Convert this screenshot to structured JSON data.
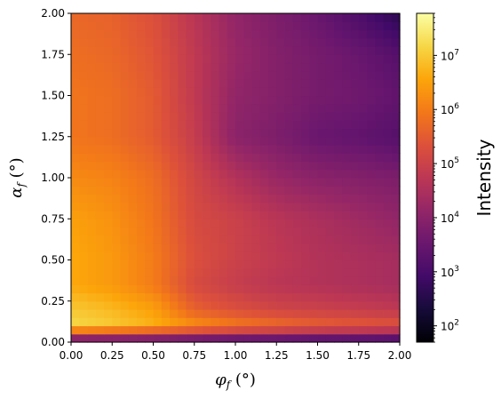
{
  "chart_data": {
    "type": "heatmap",
    "title": "",
    "xlabel": "φf (°)",
    "ylabel": "αf (°)",
    "xlim": [
      0.0,
      2.0
    ],
    "ylim": [
      0.0,
      2.0
    ],
    "x_ticks": [
      "0.00",
      "0.25",
      "0.50",
      "0.75",
      "1.00",
      "1.25",
      "1.50",
      "1.75",
      "2.00"
    ],
    "y_ticks": [
      "0.00",
      "0.25",
      "0.50",
      "0.75",
      "1.00",
      "1.25",
      "1.50",
      "1.75",
      "2.00"
    ],
    "colormap": "inferno",
    "colorbar": {
      "label": "Intensity",
      "scale": "log",
      "range": [
        50,
        60000000
      ],
      "ticks": [
        {
          "value": 100,
          "mantissa": "10",
          "exp": "2"
        },
        {
          "value": 1000,
          "mantissa": "10",
          "exp": "3"
        },
        {
          "value": 10000,
          "mantissa": "10",
          "exp": "4"
        },
        {
          "value": 100000,
          "mantissa": "10",
          "exp": "5"
        },
        {
          "value": 1000000,
          "mantissa": "10",
          "exp": "6"
        },
        {
          "value": 10000000,
          "mantissa": "10",
          "exp": "7"
        }
      ]
    },
    "grid": false,
    "phi_grid": [
      0.0,
      0.25,
      0.5,
      0.75,
      1.0,
      1.25,
      1.5,
      1.75,
      2.0
    ],
    "alpha_grid": [
      0.0,
      0.1,
      0.2,
      0.35,
      0.5,
      0.75,
      1.0,
      1.25,
      1.5,
      1.75,
      2.0
    ],
    "log10_intensity": [
      [
        3.0,
        3.0,
        3.0,
        2.9,
        2.8,
        2.8,
        2.7,
        2.7,
        2.6
      ],
      [
        7.2,
        7.0,
        6.7,
        6.3,
        6.0,
        5.8,
        5.6,
        5.5,
        5.4
      ],
      [
        7.0,
        6.8,
        6.5,
        5.6,
        5.3,
        5.1,
        5.0,
        4.9,
        4.8
      ],
      [
        6.6,
        6.4,
        6.0,
        5.2,
        4.9,
        4.7,
        4.6,
        4.5,
        4.4
      ],
      [
        6.6,
        6.4,
        6.0,
        5.3,
        5.0,
        4.8,
        4.6,
        4.5,
        4.4
      ],
      [
        6.5,
        6.3,
        5.9,
        5.2,
        5.0,
        4.7,
        4.5,
        4.3,
        4.1
      ],
      [
        6.2,
        6.1,
        5.8,
        5.1,
        4.6,
        4.2,
        4.0,
        3.9,
        3.8
      ],
      [
        5.9,
        5.8,
        5.5,
        4.9,
        4.0,
        3.8,
        3.5,
        3.4,
        3.2
      ],
      [
        5.9,
        5.8,
        5.5,
        4.8,
        4.1,
        3.9,
        3.7,
        3.6,
        3.4
      ],
      [
        5.8,
        5.7,
        5.4,
        4.8,
        4.2,
        3.9,
        3.7,
        3.5,
        3.2
      ],
      [
        5.7,
        5.6,
        5.3,
        4.7,
        4.1,
        3.8,
        3.5,
        3.1,
        2.6
      ]
    ]
  }
}
